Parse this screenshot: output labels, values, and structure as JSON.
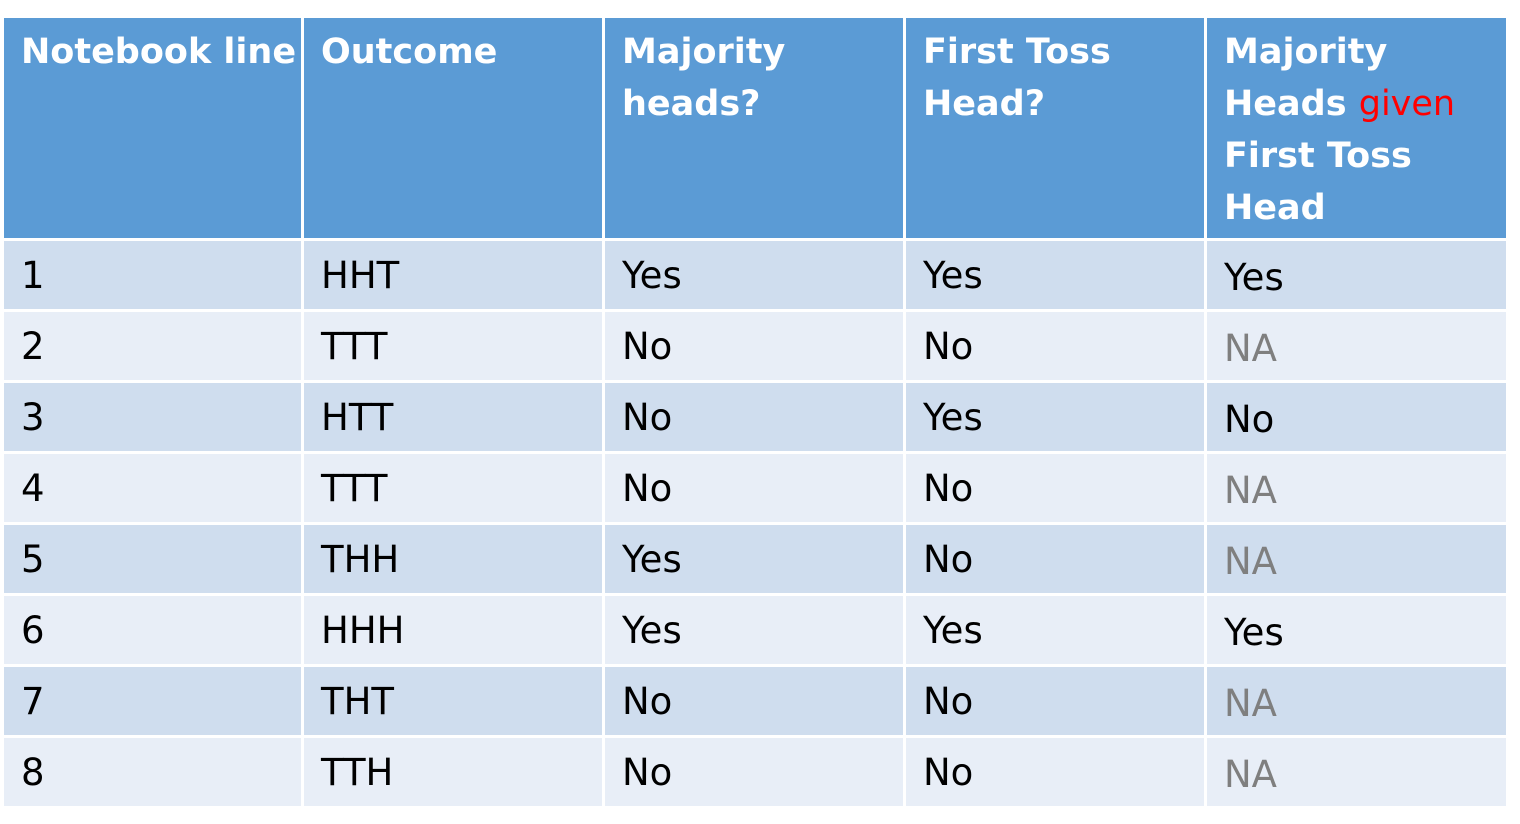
{
  "table": {
    "headers": [
      {
        "text": "Notebook line"
      },
      {
        "text": "Outcome"
      },
      {
        "text": "Majority heads?"
      },
      {
        "text": "First Toss Head?"
      },
      {
        "text_before": "Majority Heads",
        "accent": "given",
        "text_after": "First Toss Head"
      }
    ],
    "rows": [
      [
        "1",
        "HHT",
        "Yes",
        "Yes",
        "Yes"
      ],
      [
        "2",
        "TTT",
        "No",
        "No",
        "NA"
      ],
      [
        "3",
        "HTT",
        "No",
        "Yes",
        "No"
      ],
      [
        "4",
        "TTT",
        "No",
        "No",
        "NA"
      ],
      [
        "5",
        "THH",
        "Yes",
        "No",
        "NA"
      ],
      [
        "6",
        "HHH",
        "Yes",
        "Yes",
        "Yes"
      ],
      [
        "7",
        "THT",
        "No",
        "No",
        "NA"
      ],
      [
        "8",
        "TTH",
        "No",
        "No",
        "NA"
      ]
    ],
    "colors": {
      "header_bg": "#5b9bd5",
      "row_odd_bg": "#cfddee",
      "row_even_bg": "#e8eef7",
      "na_text": "#7f7f7f",
      "accent_text": "#ff0000"
    }
  }
}
